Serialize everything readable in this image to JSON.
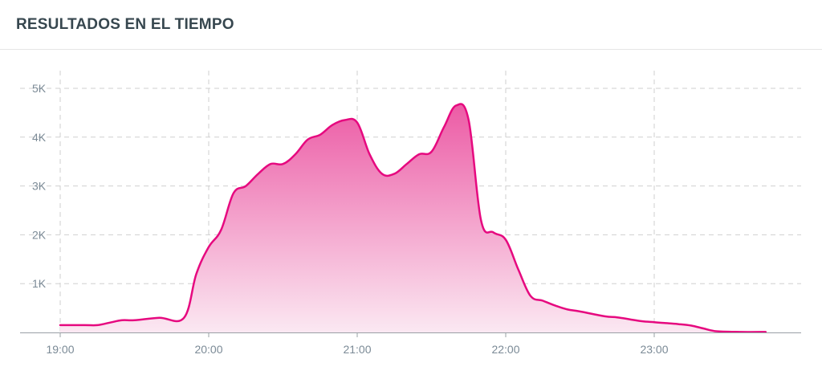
{
  "header": {
    "title": "RESULTADOS EN EL TIEMPO"
  },
  "chart_data": {
    "type": "area",
    "title": "RESULTADOS EN EL TIEMPO",
    "xlabel": "",
    "ylabel": "",
    "x_ticks": [
      "19:00",
      "20:00",
      "21:00",
      "22:00",
      "23:00"
    ],
    "y_ticks": [
      "1K",
      "2K",
      "3K",
      "4K",
      "5K"
    ],
    "xlim": [
      "19:00",
      "23:50"
    ],
    "ylim": [
      0,
      5000
    ],
    "grid": true,
    "grid_style": "dashed",
    "colors": {
      "line": "#e6097f",
      "fill_top": "#ec5ba5",
      "fill_bottom": "#fbe8f2",
      "grid": "#cfcfcf",
      "axis": "#9aa0a6"
    },
    "x": [
      "19:00",
      "19:10",
      "19:15",
      "19:20",
      "19:25",
      "19:30",
      "19:40",
      "19:50",
      "19:55",
      "20:00",
      "20:05",
      "20:10",
      "20:15",
      "20:20",
      "20:25",
      "20:30",
      "20:35",
      "20:40",
      "20:45",
      "20:50",
      "20:55",
      "21:00",
      "21:05",
      "21:10",
      "21:15",
      "21:20",
      "21:25",
      "21:30",
      "21:35",
      "21:40",
      "21:45",
      "21:50",
      "21:55",
      "22:00",
      "22:05",
      "22:10",
      "22:15",
      "22:20",
      "22:25",
      "22:30",
      "22:40",
      "22:45",
      "22:50",
      "22:55",
      "23:00",
      "23:05",
      "23:10",
      "23:15",
      "23:20",
      "23:25",
      "23:35",
      "23:45"
    ],
    "values": [
      150,
      150,
      150,
      200,
      250,
      250,
      300,
      300,
      1200,
      1750,
      2100,
      2850,
      3000,
      3250,
      3450,
      3450,
      3650,
      3950,
      4050,
      4250,
      4350,
      4300,
      3650,
      3250,
      3250,
      3450,
      3650,
      3700,
      4200,
      4650,
      4350,
      2300,
      2050,
      1900,
      1300,
      750,
      650,
      550,
      470,
      430,
      330,
      310,
      270,
      230,
      210,
      190,
      170,
      140,
      80,
      25,
      10,
      10
    ]
  }
}
